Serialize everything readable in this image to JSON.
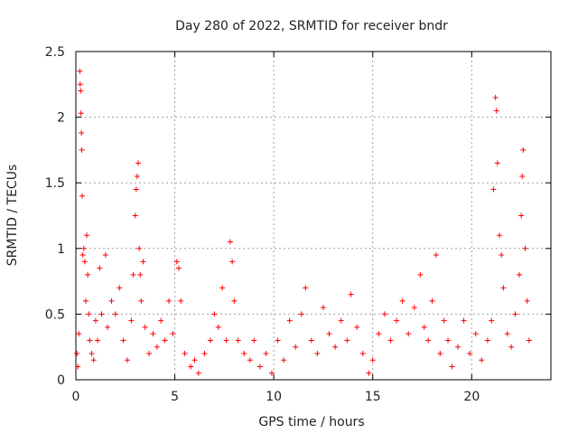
{
  "chart_data": {
    "type": "scatter",
    "title": "Day 280 of 2022, SRMTID for receiver bndr",
    "xlabel": "GPS time / hours",
    "ylabel": "SRMTID / TECUs",
    "xlim": [
      0,
      24
    ],
    "ylim": [
      0,
      2.5
    ],
    "x_ticks": [
      "0",
      "5",
      "10",
      "15",
      "20"
    ],
    "y_ticks": [
      "0",
      "0.5",
      "1",
      "1.5",
      "2",
      "2.5"
    ],
    "grid": true,
    "marker": "plus",
    "series": [
      {
        "name": "SRMTID",
        "color": "#ff0000",
        "points": [
          [
            0.05,
            0.2
          ],
          [
            0.1,
            0.1
          ],
          [
            0.15,
            0.35
          ],
          [
            0.2,
            2.35
          ],
          [
            0.22,
            2.25
          ],
          [
            0.24,
            2.2
          ],
          [
            0.26,
            2.03
          ],
          [
            0.28,
            1.88
          ],
          [
            0.3,
            1.75
          ],
          [
            0.32,
            1.4
          ],
          [
            0.35,
            0.95
          ],
          [
            0.4,
            1.0
          ],
          [
            0.45,
            0.9
          ],
          [
            0.5,
            0.6
          ],
          [
            0.55,
            1.1
          ],
          [
            0.6,
            0.8
          ],
          [
            0.65,
            0.5
          ],
          [
            0.7,
            0.3
          ],
          [
            0.8,
            0.2
          ],
          [
            0.9,
            0.15
          ],
          [
            1.0,
            0.45
          ],
          [
            1.1,
            0.3
          ],
          [
            1.2,
            0.85
          ],
          [
            1.3,
            0.5
          ],
          [
            1.5,
            0.95
          ],
          [
            1.6,
            0.4
          ],
          [
            1.8,
            0.6
          ],
          [
            2.0,
            0.5
          ],
          [
            2.2,
            0.7
          ],
          [
            2.4,
            0.3
          ],
          [
            2.6,
            0.15
          ],
          [
            2.8,
            0.45
          ],
          [
            2.9,
            0.8
          ],
          [
            3.0,
            1.25
          ],
          [
            3.05,
            1.45
          ],
          [
            3.1,
            1.55
          ],
          [
            3.15,
            1.65
          ],
          [
            3.2,
            1.0
          ],
          [
            3.25,
            0.8
          ],
          [
            3.3,
            0.6
          ],
          [
            3.4,
            0.9
          ],
          [
            3.5,
            0.4
          ],
          [
            3.7,
            0.2
          ],
          [
            3.9,
            0.35
          ],
          [
            4.1,
            0.25
          ],
          [
            4.3,
            0.45
          ],
          [
            4.5,
            0.3
          ],
          [
            4.7,
            0.6
          ],
          [
            4.9,
            0.35
          ],
          [
            5.1,
            0.9
          ],
          [
            5.2,
            0.85
          ],
          [
            5.3,
            0.6
          ],
          [
            5.5,
            0.2
          ],
          [
            5.8,
            0.1
          ],
          [
            6.0,
            0.15
          ],
          [
            6.2,
            0.05
          ],
          [
            6.5,
            0.2
          ],
          [
            6.8,
            0.3
          ],
          [
            7.0,
            0.5
          ],
          [
            7.2,
            0.4
          ],
          [
            7.4,
            0.7
          ],
          [
            7.6,
            0.3
          ],
          [
            7.8,
            1.05
          ],
          [
            7.9,
            0.9
          ],
          [
            8.0,
            0.6
          ],
          [
            8.2,
            0.3
          ],
          [
            8.5,
            0.2
          ],
          [
            8.8,
            0.15
          ],
          [
            9.0,
            0.3
          ],
          [
            9.3,
            0.1
          ],
          [
            9.6,
            0.2
          ],
          [
            9.9,
            0.05
          ],
          [
            10.2,
            0.3
          ],
          [
            10.5,
            0.15
          ],
          [
            10.8,
            0.45
          ],
          [
            11.1,
            0.25
          ],
          [
            11.4,
            0.5
          ],
          [
            11.6,
            0.7
          ],
          [
            11.9,
            0.3
          ],
          [
            12.2,
            0.2
          ],
          [
            12.5,
            0.55
          ],
          [
            12.8,
            0.35
          ],
          [
            13.1,
            0.25
          ],
          [
            13.4,
            0.45
          ],
          [
            13.7,
            0.3
          ],
          [
            13.9,
            0.65
          ],
          [
            14.2,
            0.4
          ],
          [
            14.5,
            0.2
          ],
          [
            14.8,
            0.05
          ],
          [
            15.0,
            0.15
          ],
          [
            15.3,
            0.35
          ],
          [
            15.6,
            0.5
          ],
          [
            15.9,
            0.3
          ],
          [
            16.2,
            0.45
          ],
          [
            16.5,
            0.6
          ],
          [
            16.8,
            0.35
          ],
          [
            17.1,
            0.55
          ],
          [
            17.4,
            0.8
          ],
          [
            17.6,
            0.4
          ],
          [
            17.8,
            0.3
          ],
          [
            18.0,
            0.6
          ],
          [
            18.2,
            0.95
          ],
          [
            18.4,
            0.2
          ],
          [
            18.6,
            0.45
          ],
          [
            18.8,
            0.3
          ],
          [
            19.0,
            0.1
          ],
          [
            19.3,
            0.25
          ],
          [
            19.6,
            0.45
          ],
          [
            19.9,
            0.2
          ],
          [
            20.2,
            0.35
          ],
          [
            20.5,
            0.15
          ],
          [
            20.8,
            0.3
          ],
          [
            21.0,
            0.45
          ],
          [
            21.1,
            1.45
          ],
          [
            21.2,
            2.15
          ],
          [
            21.25,
            2.05
          ],
          [
            21.3,
            1.65
          ],
          [
            21.4,
            1.1
          ],
          [
            21.5,
            0.95
          ],
          [
            21.6,
            0.7
          ],
          [
            21.8,
            0.35
          ],
          [
            22.0,
            0.25
          ],
          [
            22.2,
            0.5
          ],
          [
            22.4,
            0.8
          ],
          [
            22.5,
            1.25
          ],
          [
            22.55,
            1.55
          ],
          [
            22.6,
            1.75
          ],
          [
            22.7,
            1.0
          ],
          [
            22.8,
            0.6
          ],
          [
            22.9,
            0.3
          ]
        ]
      }
    ]
  }
}
